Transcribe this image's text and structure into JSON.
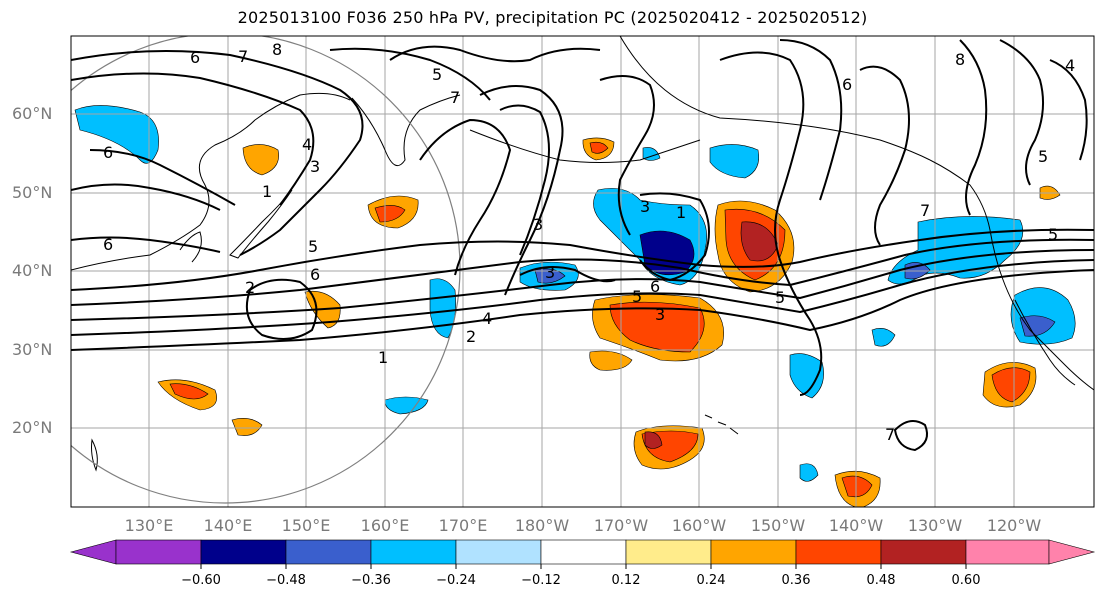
{
  "title": "2025013100 F036 250 hPa PV, precipitation PC (2025020412 - 2025020512)",
  "lat_labels": [
    "20°N",
    "30°N",
    "40°N",
    "50°N",
    "60°N"
  ],
  "lon_labels": [
    "130°E",
    "140°E",
    "150°E",
    "160°E",
    "170°E",
    "180°W",
    "170°W",
    "160°W",
    "150°W",
    "140°W",
    "130°W",
    "120°W"
  ],
  "colorbar": {
    "ticks": [
      "−0.60",
      "−0.48",
      "−0.36",
      "−0.24",
      "−0.12",
      "0.12",
      "0.24",
      "0.36",
      "0.48",
      "0.60"
    ],
    "colors": [
      "#9932CC",
      "#00008B",
      "#3A5FCD",
      "#00BFFF",
      "#B0E2FF",
      "#FFFFFF",
      "#FFEC8B",
      "#FFA500",
      "#FF4500",
      "#B22222",
      "#FF82AB"
    ]
  },
  "contour_labels": [
    "6",
    "7",
    "8",
    "5",
    "7",
    "6",
    "4",
    "3",
    "1",
    "6",
    "5",
    "6",
    "2",
    "4",
    "2",
    "1",
    "3",
    "3",
    "1",
    "5",
    "6",
    "3",
    "7",
    "5",
    "6",
    "8",
    "5",
    "7",
    "3",
    "5",
    "4"
  ]
}
